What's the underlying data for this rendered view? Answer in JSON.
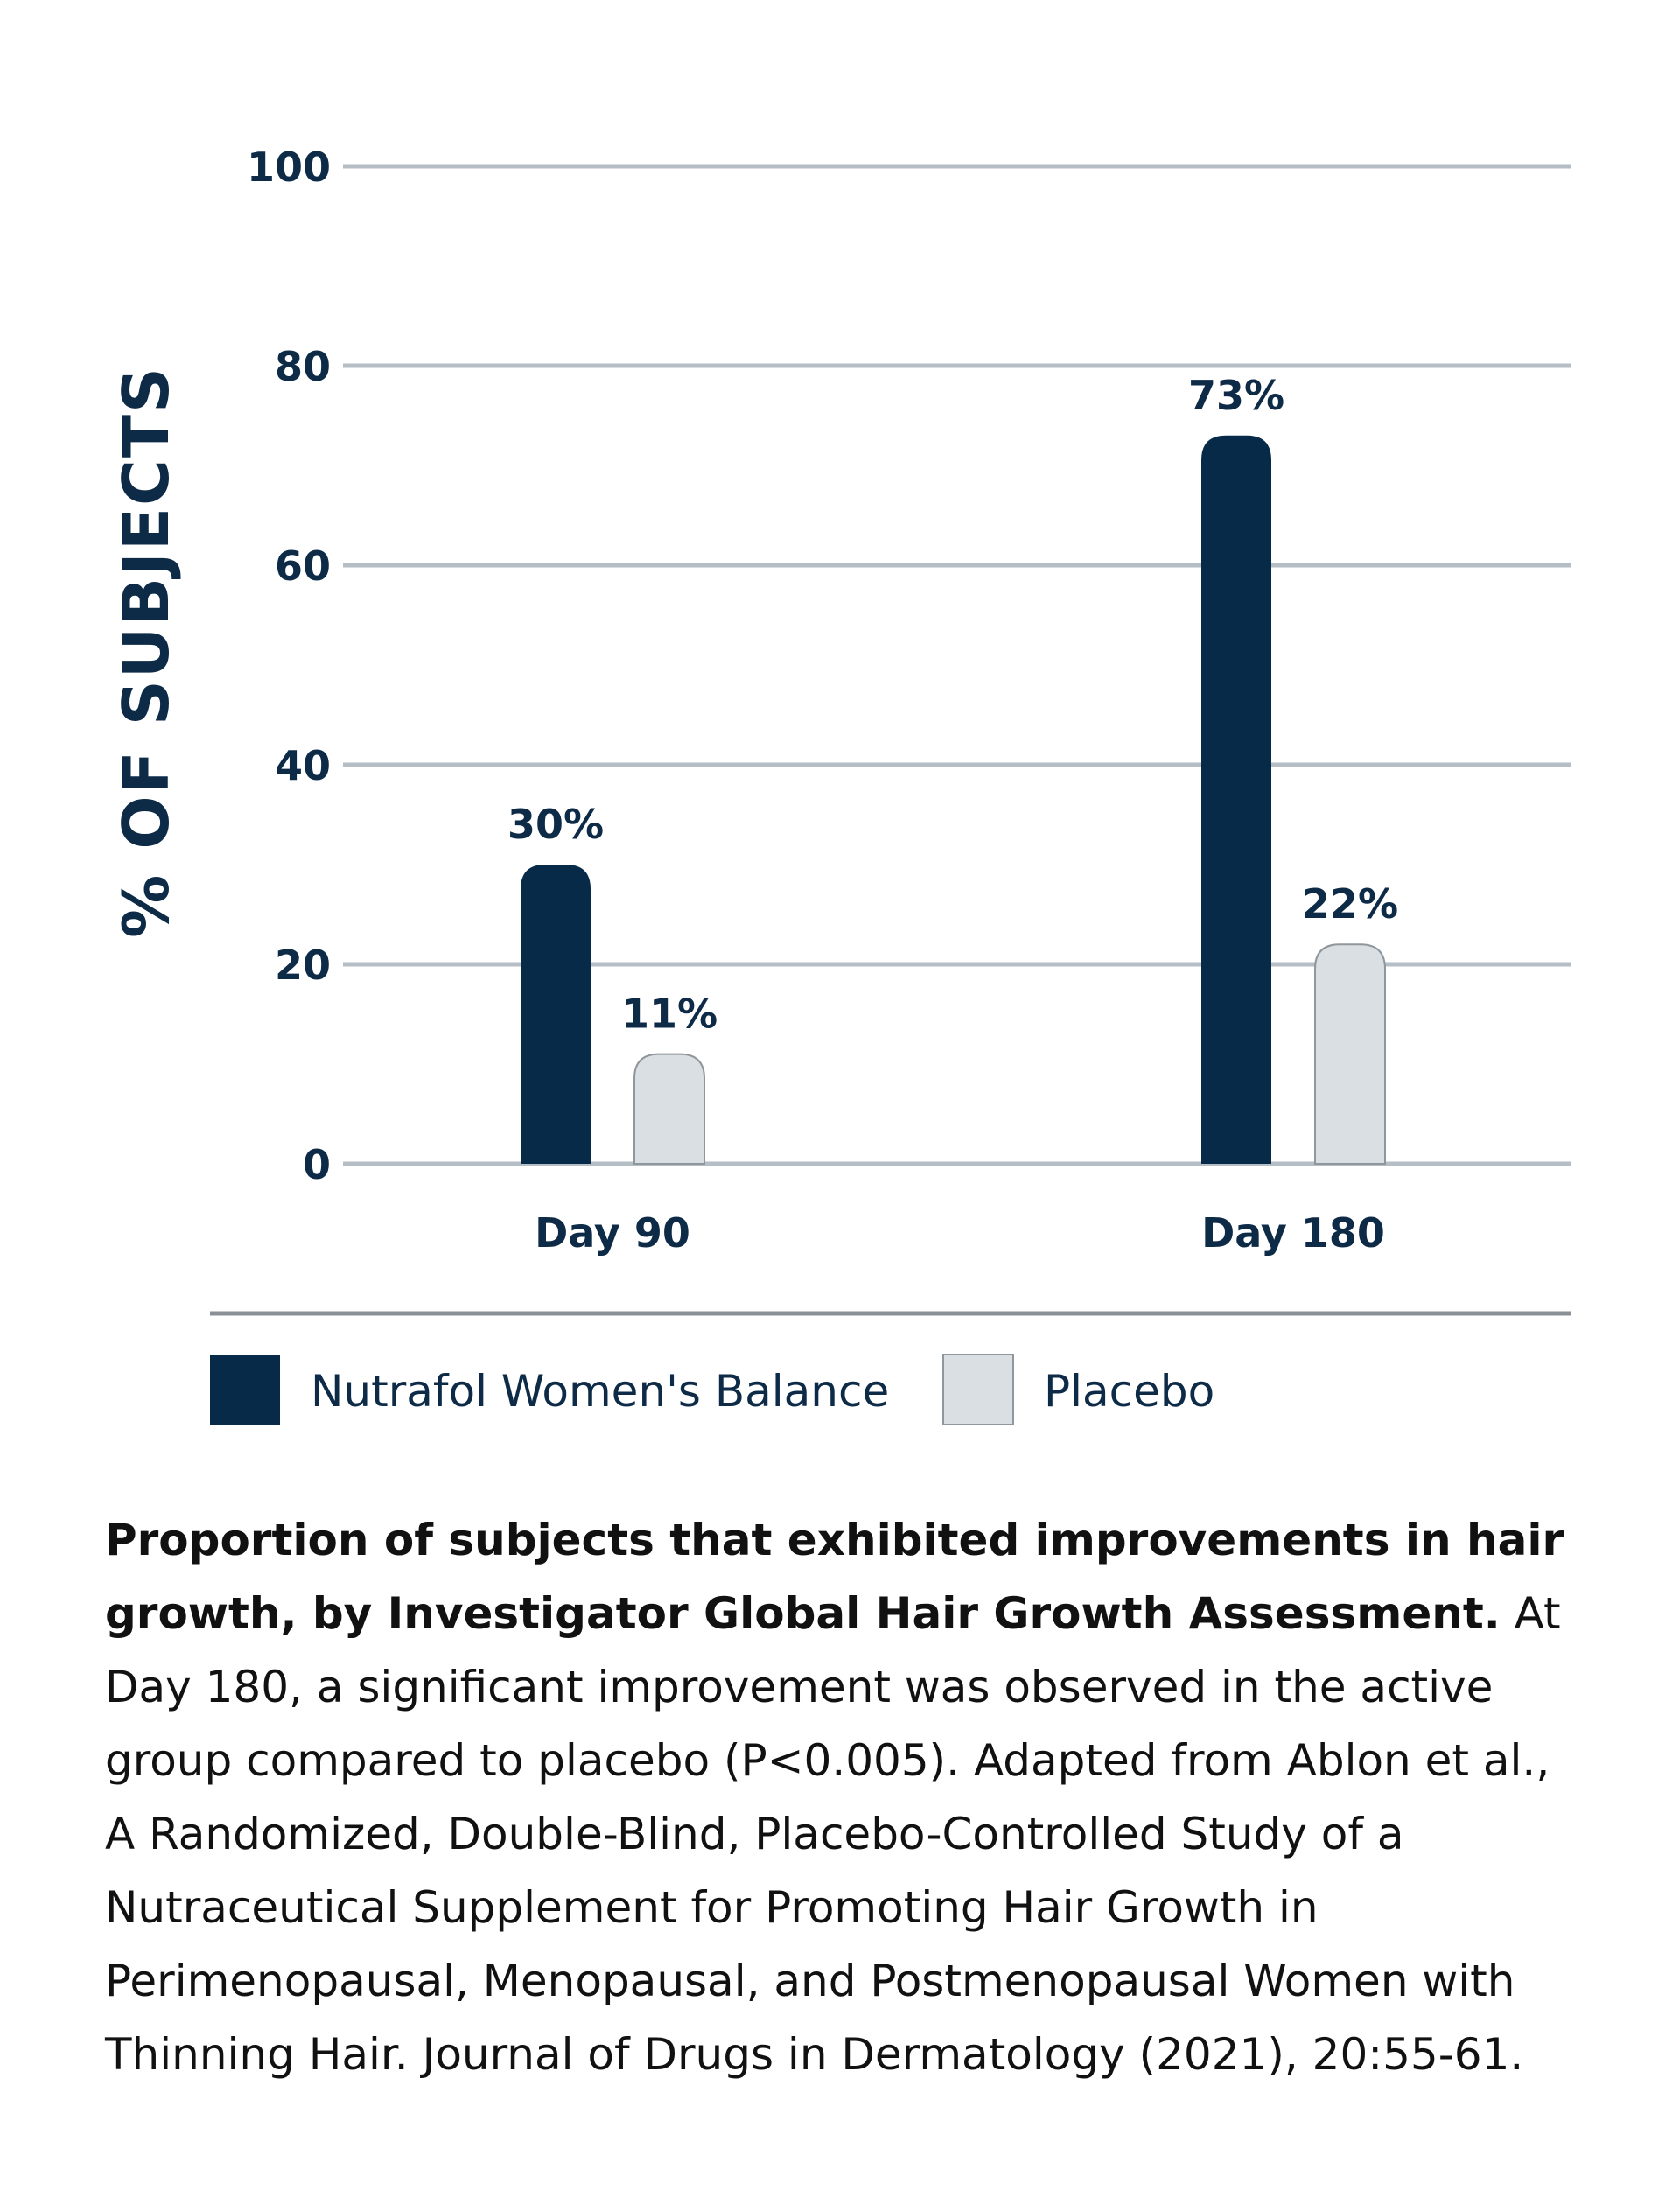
{
  "chart_data": {
    "type": "bar",
    "title": "",
    "xlabel": "",
    "ylabel": "% OF SUBJECTS",
    "ylim": [
      0,
      100
    ],
    "yticks": [
      0,
      20,
      40,
      60,
      80,
      100
    ],
    "ytick_labels": [
      "0",
      "20",
      "40",
      "60",
      "80",
      "100"
    ],
    "categories": [
      "Day 90",
      "Day 180"
    ],
    "grid": true,
    "legend_position": "bottom-left",
    "series": [
      {
        "name": "Nutrafol Women's Balance",
        "values": [
          30,
          73
        ],
        "labels": [
          "30%",
          "73%"
        ],
        "color": "#062a48"
      },
      {
        "name": "Placebo",
        "values": [
          11,
          22
        ],
        "labels": [
          "11%",
          "22%"
        ],
        "color": "#d9dfe3"
      }
    ]
  },
  "colors": {
    "navy": "#062a48",
    "placebo_fill": "#d9dfe3",
    "placebo_stroke": "#8f969c",
    "grid": "#b6bec5",
    "divider": "#8a9096"
  },
  "caption": {
    "bold": "Proportion of subjects that exhibited improvements in hair growth, by Investigator Global Hair Growth Assessment.",
    "text": " At Day 180, a significant improvement was observed in the active group compared to placebo (P<0.005). Adapted from Ablon et al., A Randomized, Double-Blind, Placebo-Controlled Study of a Nutraceutical Supplement for Promoting Hair Growth in Perimenopausal, Menopausal, and Postmenopausal Women with Thinning Hair. Journal of Drugs in Dermatology (2021), 20:55-61."
  }
}
